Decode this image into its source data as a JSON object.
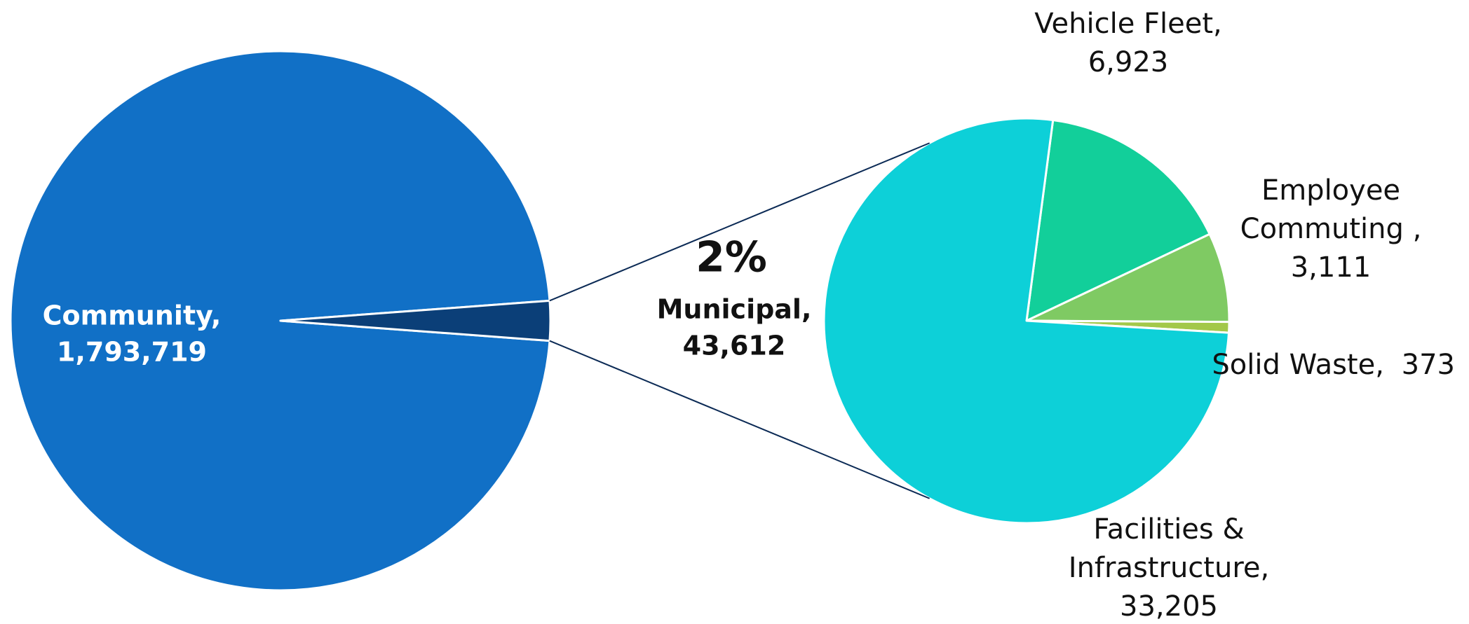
{
  "chart_data": [
    {
      "type": "pie",
      "categories": [
        "Community,",
        "Municipal,"
      ],
      "values": [
        1793719,
        43612
      ],
      "value_labels": [
        "1,793,719",
        "43,612"
      ],
      "percent_labels": [
        null,
        "2%"
      ],
      "colors": [
        "#1170c6",
        "#0b3f78"
      ]
    },
    {
      "type": "pie",
      "categories": [
        "Vehicle Fleet,",
        "Employee Commuting ,",
        "Solid Waste, ",
        "Facilities & Infrastructure,"
      ],
      "values": [
        6923,
        3111,
        373,
        33205
      ],
      "value_labels": [
        "6,923",
        "3,111",
        "373",
        "33,205"
      ],
      "colors": [
        "#12cf9a",
        "#7fca63",
        "#a3c84a",
        "#0dd0d8"
      ]
    }
  ]
}
